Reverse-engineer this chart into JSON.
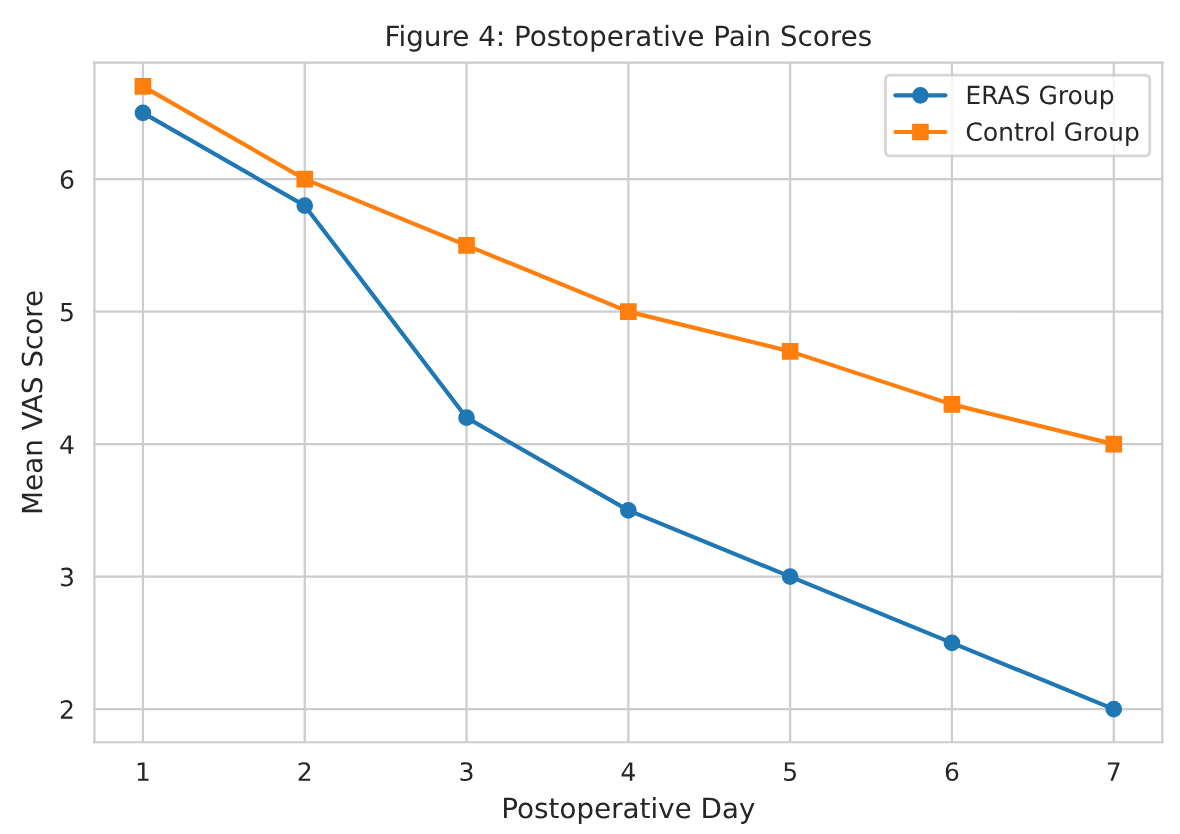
{
  "chart_data": {
    "type": "line",
    "title": "Figure 4: Postoperative Pain Scores",
    "xlabel": "Postoperative Day",
    "ylabel": "Mean VAS Score",
    "x": [
      1,
      2,
      3,
      4,
      5,
      6,
      7
    ],
    "series": [
      {
        "name": "ERAS Group",
        "color": "#1f77b4",
        "marker": "circle",
        "values": [
          6.5,
          5.8,
          4.2,
          3.5,
          3.0,
          2.5,
          2.0
        ]
      },
      {
        "name": "Control Group",
        "color": "#ff7f0e",
        "marker": "square",
        "values": [
          6.7,
          6.0,
          5.5,
          5.0,
          4.7,
          4.3,
          4.0
        ]
      }
    ],
    "xlim": [
      0.7,
      7.3
    ],
    "xticks": [
      1,
      2,
      3,
      4,
      5,
      6,
      7
    ],
    "ylim": [
      1.75,
      6.88
    ],
    "yticks": [
      2,
      3,
      4,
      5,
      6
    ],
    "grid": true,
    "legend": "top right"
  }
}
